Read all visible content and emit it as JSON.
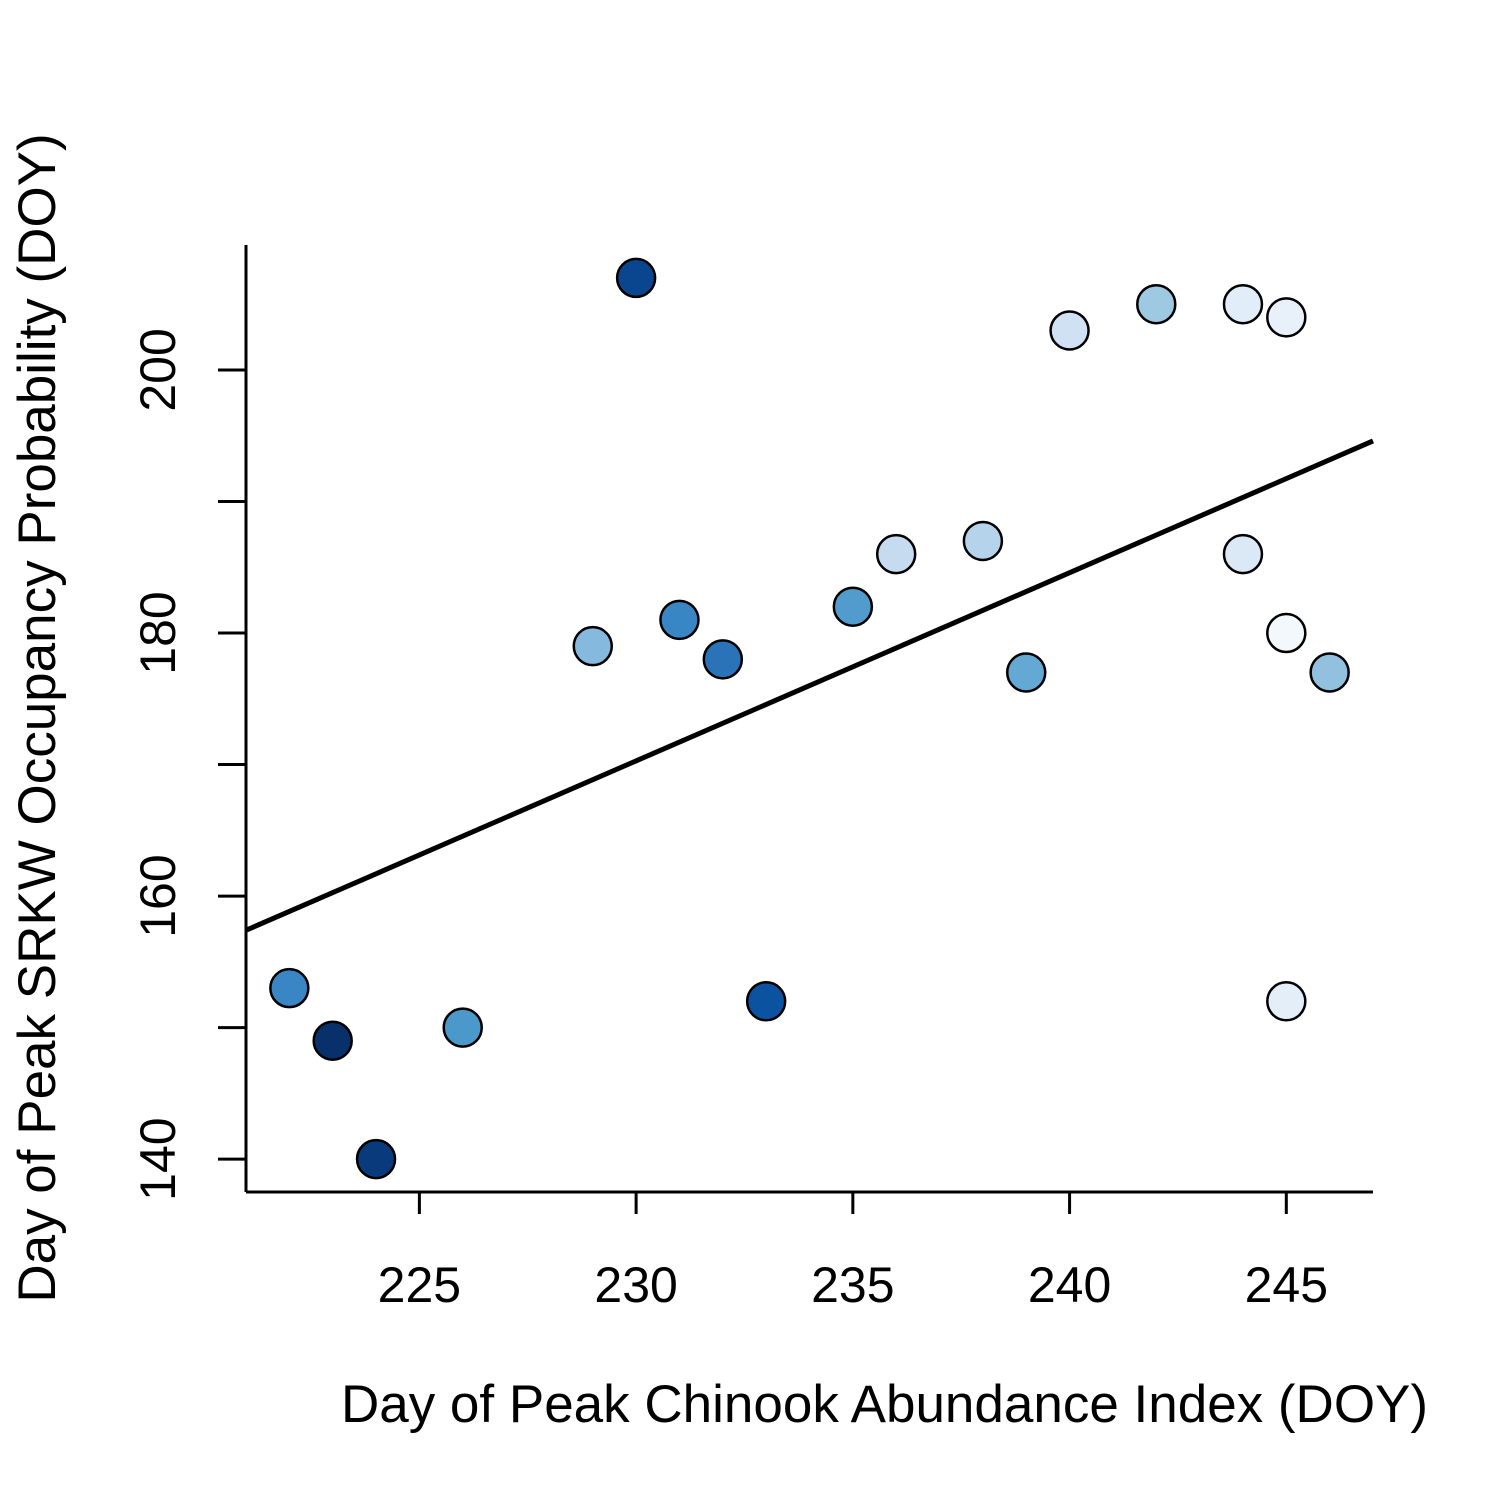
{
  "chart_data": {
    "type": "scatter",
    "xlabel": "Day of Peak Chinook Abundance Index (DOY)",
    "ylabel": "Day of Peak SRKW Occupancy Probability (DOY)",
    "xlim": [
      221,
      247
    ],
    "ylim": [
      137.5,
      209.5
    ],
    "xticks": [
      225,
      230,
      235,
      240,
      245
    ],
    "xtick_labels": [
      "225",
      "230",
      "235",
      "240",
      "245"
    ],
    "yticks": [
      140,
      150,
      160,
      170,
      180,
      190,
      200
    ],
    "ytick_labels": [
      "140",
      "",
      "160",
      "",
      "180",
      "",
      "200"
    ],
    "grid": false,
    "points": [
      {
        "x": 222,
        "y": 153,
        "color": "#3a85c3"
      },
      {
        "x": 223,
        "y": 149,
        "color": "#08306b"
      },
      {
        "x": 224,
        "y": 140,
        "color": "#093b7c"
      },
      {
        "x": 226,
        "y": 150,
        "color": "#4b98cb"
      },
      {
        "x": 229,
        "y": 179,
        "color": "#85b9dd"
      },
      {
        "x": 230,
        "y": 207,
        "color": "#0a468f"
      },
      {
        "x": 231,
        "y": 181,
        "color": "#3886c4"
      },
      {
        "x": 232,
        "y": 178,
        "color": "#2a73b8"
      },
      {
        "x": 233,
        "y": 152,
        "color": "#0b52a0"
      },
      {
        "x": 235,
        "y": 182,
        "color": "#519ccd"
      },
      {
        "x": 236,
        "y": 186,
        "color": "#c6dbef"
      },
      {
        "x": 238,
        "y": 187,
        "color": "#b5d3ea"
      },
      {
        "x": 239,
        "y": 177,
        "color": "#64a8d4"
      },
      {
        "x": 240,
        "y": 203,
        "color": "#cfe1f2"
      },
      {
        "x": 242,
        "y": 205,
        "color": "#9ec9e2"
      },
      {
        "x": 244,
        "y": 205,
        "color": "#e1edf8"
      },
      {
        "x": 244,
        "y": 186,
        "color": "#dbe9f6"
      },
      {
        "x": 245,
        "y": 204,
        "color": "#e8f1fa"
      },
      {
        "x": 245,
        "y": 180,
        "color": "#f3f8fd"
      },
      {
        "x": 245,
        "y": 152,
        "color": "#e3eef9"
      },
      {
        "x": 246,
        "y": 177,
        "color": "#91c1df"
      }
    ],
    "fit_line": {
      "x": [
        221,
        247
      ],
      "y": [
        157.4,
        194.6
      ]
    }
  }
}
